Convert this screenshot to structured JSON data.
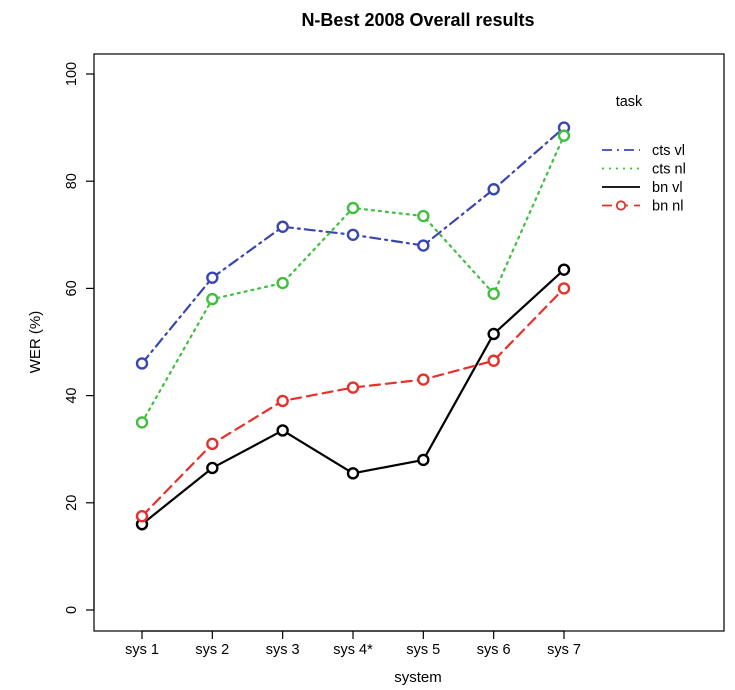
{
  "chart_data": {
    "type": "line",
    "title": "N-Best 2008 Overall results",
    "xlabel": "system",
    "ylabel": "WER (%)",
    "categories": [
      "sys 1",
      "sys 2",
      "sys 3",
      "sys 4*",
      "sys 5",
      "sys 6",
      "sys 7"
    ],
    "ylim": [
      0,
      100
    ],
    "yticks": [
      0,
      20,
      40,
      60,
      80,
      100
    ],
    "grid": false,
    "legend": {
      "title": "task",
      "placement": "top-right"
    },
    "series": [
      {
        "name": "cts vl",
        "color": "#3a47b0",
        "line_style": "dot-dash",
        "values": [
          46,
          62,
          71.5,
          70,
          68,
          78.5,
          90
        ]
      },
      {
        "name": "cts nl",
        "color": "#3fbf3f",
        "line_style": "dotted",
        "values": [
          35,
          58,
          61,
          75,
          73.5,
          59,
          88.5
        ]
      },
      {
        "name": "bn vl",
        "color": "#000000",
        "line_style": "solid",
        "values": [
          16,
          26.5,
          33.5,
          25.5,
          28,
          51.5,
          63.5
        ]
      },
      {
        "name": "bn nl",
        "color": "#e8302a",
        "line_style": "dashed",
        "values": [
          17.5,
          31,
          39,
          41.5,
          43,
          46.5,
          60
        ]
      }
    ]
  }
}
